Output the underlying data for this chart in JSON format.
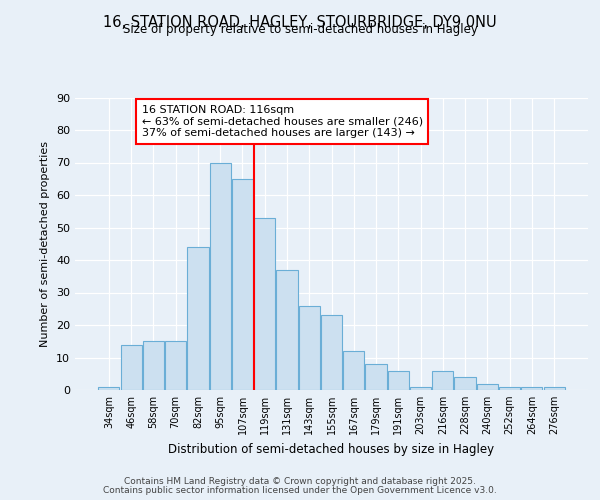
{
  "title1": "16, STATION ROAD, HAGLEY, STOURBRIDGE, DY9 0NU",
  "title2": "Size of property relative to semi-detached houses in Hagley",
  "xlabel": "Distribution of semi-detached houses by size in Hagley",
  "ylabel": "Number of semi-detached properties",
  "categories": [
    "34sqm",
    "46sqm",
    "58sqm",
    "70sqm",
    "82sqm",
    "95sqm",
    "107sqm",
    "119sqm",
    "131sqm",
    "143sqm",
    "155sqm",
    "167sqm",
    "179sqm",
    "191sqm",
    "203sqm",
    "216sqm",
    "228sqm",
    "240sqm",
    "252sqm",
    "264sqm",
    "276sqm"
  ],
  "values": [
    1,
    14,
    15,
    15,
    44,
    70,
    65,
    53,
    37,
    26,
    23,
    12,
    8,
    6,
    1,
    6,
    4,
    2,
    1,
    1,
    1
  ],
  "bar_color": "#cce0f0",
  "bar_edge_color": "#6aaed6",
  "vline_x_index": 7,
  "vline_color": "red",
  "annotation_title": "16 STATION ROAD: 116sqm",
  "annotation_line1": "← 63% of semi-detached houses are smaller (246)",
  "annotation_line2": "37% of semi-detached houses are larger (143) →",
  "annotation_box_color": "white",
  "annotation_box_edge": "red",
  "ylim": [
    0,
    90
  ],
  "yticks": [
    0,
    10,
    20,
    30,
    40,
    50,
    60,
    70,
    80,
    90
  ],
  "footer1": "Contains HM Land Registry data © Crown copyright and database right 2025.",
  "footer2": "Contains public sector information licensed under the Open Government Licence v3.0.",
  "bg_color": "#e8f0f8",
  "plot_bg_color": "#e8f0f8"
}
